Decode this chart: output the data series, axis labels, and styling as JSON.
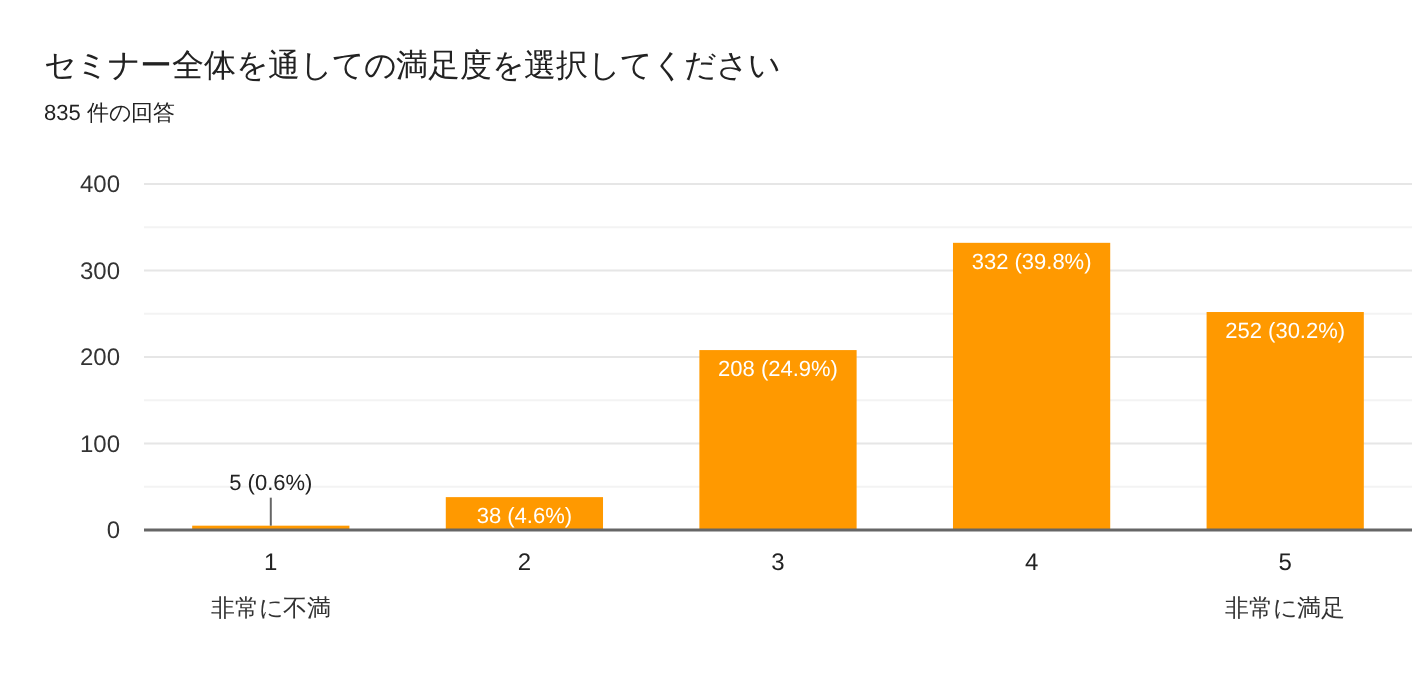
{
  "chart_data": {
    "type": "bar",
    "title": "セミナー全体を通しての満足度を選択してください",
    "subtitle": "835 件の回答",
    "categories": [
      "1",
      "2",
      "3",
      "4",
      "5"
    ],
    "values": [
      5,
      38,
      208,
      332,
      252
    ],
    "color": "#ff9900",
    "value_labels": [
      "5 (0.6%)",
      "38 (4.6%)",
      "208 (24.9%)",
      "332 (39.8%)",
      "252 (30.2%)"
    ],
    "ylim": [
      0,
      400
    ],
    "yticks": [
      0,
      {
        "value": 50,
        "label": null
      },
      100,
      {
        "value": 150,
        "label": null
      },
      200,
      {
        "value": 250,
        "label": null
      },
      300,
      {
        "value": 350,
        "label": null
      },
      400
    ],
    "grid": "y",
    "annotations": [
      "非常に不満",
      "非常に満足"
    ]
  }
}
